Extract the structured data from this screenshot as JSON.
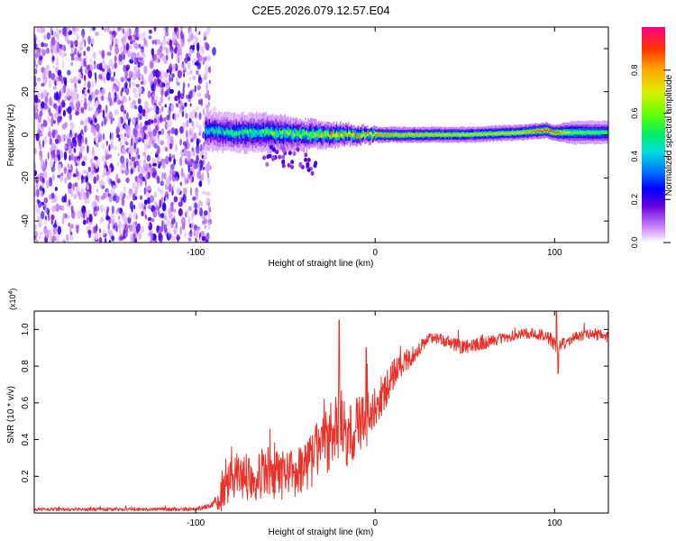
{
  "title": "C2E5.2026.079.12.57.E04",
  "chart_data": [
    {
      "type": "heatmap",
      "name": "spectrogram",
      "xlabel": "Height of straight line (km)",
      "ylabel": "Frequency (Hz)",
      "xlim": [
        -190,
        130
      ],
      "ylim": [
        -50,
        50
      ],
      "xticks": [
        -100,
        0,
        100
      ],
      "xtick_labels": [
        "-100",
        "0",
        "100"
      ],
      "yticks": [
        -40,
        -20,
        0,
        20,
        40
      ],
      "ytick_labels": [
        "-40",
        "-20",
        "0",
        "20",
        "40"
      ],
      "noise_region_x": [
        -190,
        -92
      ],
      "signal_band": {
        "x": [
          -95,
          -80,
          -60,
          -40,
          -20,
          0,
          20,
          50,
          80,
          95,
          100,
          110,
          130
        ],
        "center_hz": [
          2,
          1,
          1,
          0,
          0,
          0,
          0,
          0,
          1,
          2,
          1,
          1,
          1
        ],
        "halfwidth_hz": [
          5,
          5,
          5,
          4,
          3,
          2,
          2,
          2,
          2,
          2,
          2,
          3,
          3
        ],
        "peak_amplitude": [
          0.45,
          0.5,
          0.55,
          0.65,
          0.8,
          0.85,
          0.8,
          0.75,
          0.75,
          0.95,
          0.9,
          0.6,
          0.55
        ]
      },
      "colorbar": {
        "label": "Normalized spectral amplitude",
        "range": [
          0,
          1
        ],
        "ticks": [
          0.0,
          0.2,
          0.4,
          0.6,
          0.8
        ],
        "tick_labels": [
          "0.0",
          "0.2",
          "0.4",
          "0.6",
          "0.8"
        ]
      }
    },
    {
      "type": "line",
      "name": "snr",
      "xlabel": "Height of straight line (km)",
      "ylabel": "SNR (10 * v/v)",
      "multiplier": "(x10",
      "multiplier_exp": "4",
      "multiplier_close": ")",
      "xlim": [
        -190,
        130
      ],
      "ylim": [
        0,
        1.1
      ],
      "xticks": [
        -100,
        0,
        100
      ],
      "xtick_labels": [
        "-100",
        "0",
        "100"
      ],
      "yticks": [
        0.2,
        0.4,
        0.6,
        0.8,
        1.0
      ],
      "ytick_labels": [
        "0.2",
        "0.4",
        "0.6",
        "0.8",
        "1.0"
      ],
      "line_color": "#e8332b",
      "x": [
        -190,
        -100,
        -90,
        -85,
        -82,
        -80,
        -70,
        -60,
        -50,
        -44,
        -40,
        -35,
        -32,
        -28,
        -25,
        -22,
        -19,
        -16,
        -12,
        -8,
        -5,
        -2,
        0,
        5,
        10,
        15,
        20,
        25,
        30,
        35,
        50,
        70,
        85,
        95,
        100,
        102,
        110,
        120,
        130
      ],
      "y": [
        0.02,
        0.02,
        0.05,
        0.1,
        0.15,
        0.2,
        0.2,
        0.22,
        0.2,
        0.2,
        0.25,
        0.3,
        0.35,
        0.4,
        0.4,
        0.45,
        0.5,
        0.4,
        0.45,
        0.5,
        0.5,
        0.55,
        0.6,
        0.65,
        0.75,
        0.8,
        0.85,
        0.9,
        0.95,
        0.95,
        0.9,
        0.95,
        0.98,
        0.97,
        0.92,
        0.9,
        0.95,
        0.98,
        0.96
      ],
      "noise_amp": [
        0.01,
        0.01,
        0.02,
        0.1,
        0.1,
        0.12,
        0.14,
        0.14,
        0.14,
        0.14,
        0.14,
        0.16,
        0.16,
        0.16,
        0.2,
        0.2,
        0.18,
        0.18,
        0.17,
        0.17,
        0.15,
        0.12,
        0.12,
        0.1,
        0.08,
        0.07,
        0.05,
        0.04,
        0.03,
        0.03,
        0.04,
        0.03,
        0.03,
        0.03,
        0.05,
        0.04,
        0.03,
        0.03,
        0.03
      ],
      "spikes": [
        {
          "x": -20,
          "y": 1.05
        },
        {
          "x": -5,
          "y": 0.9
        },
        {
          "x": 101,
          "y": 1.12
        },
        {
          "x": 102,
          "y": 0.76
        }
      ]
    }
  ]
}
